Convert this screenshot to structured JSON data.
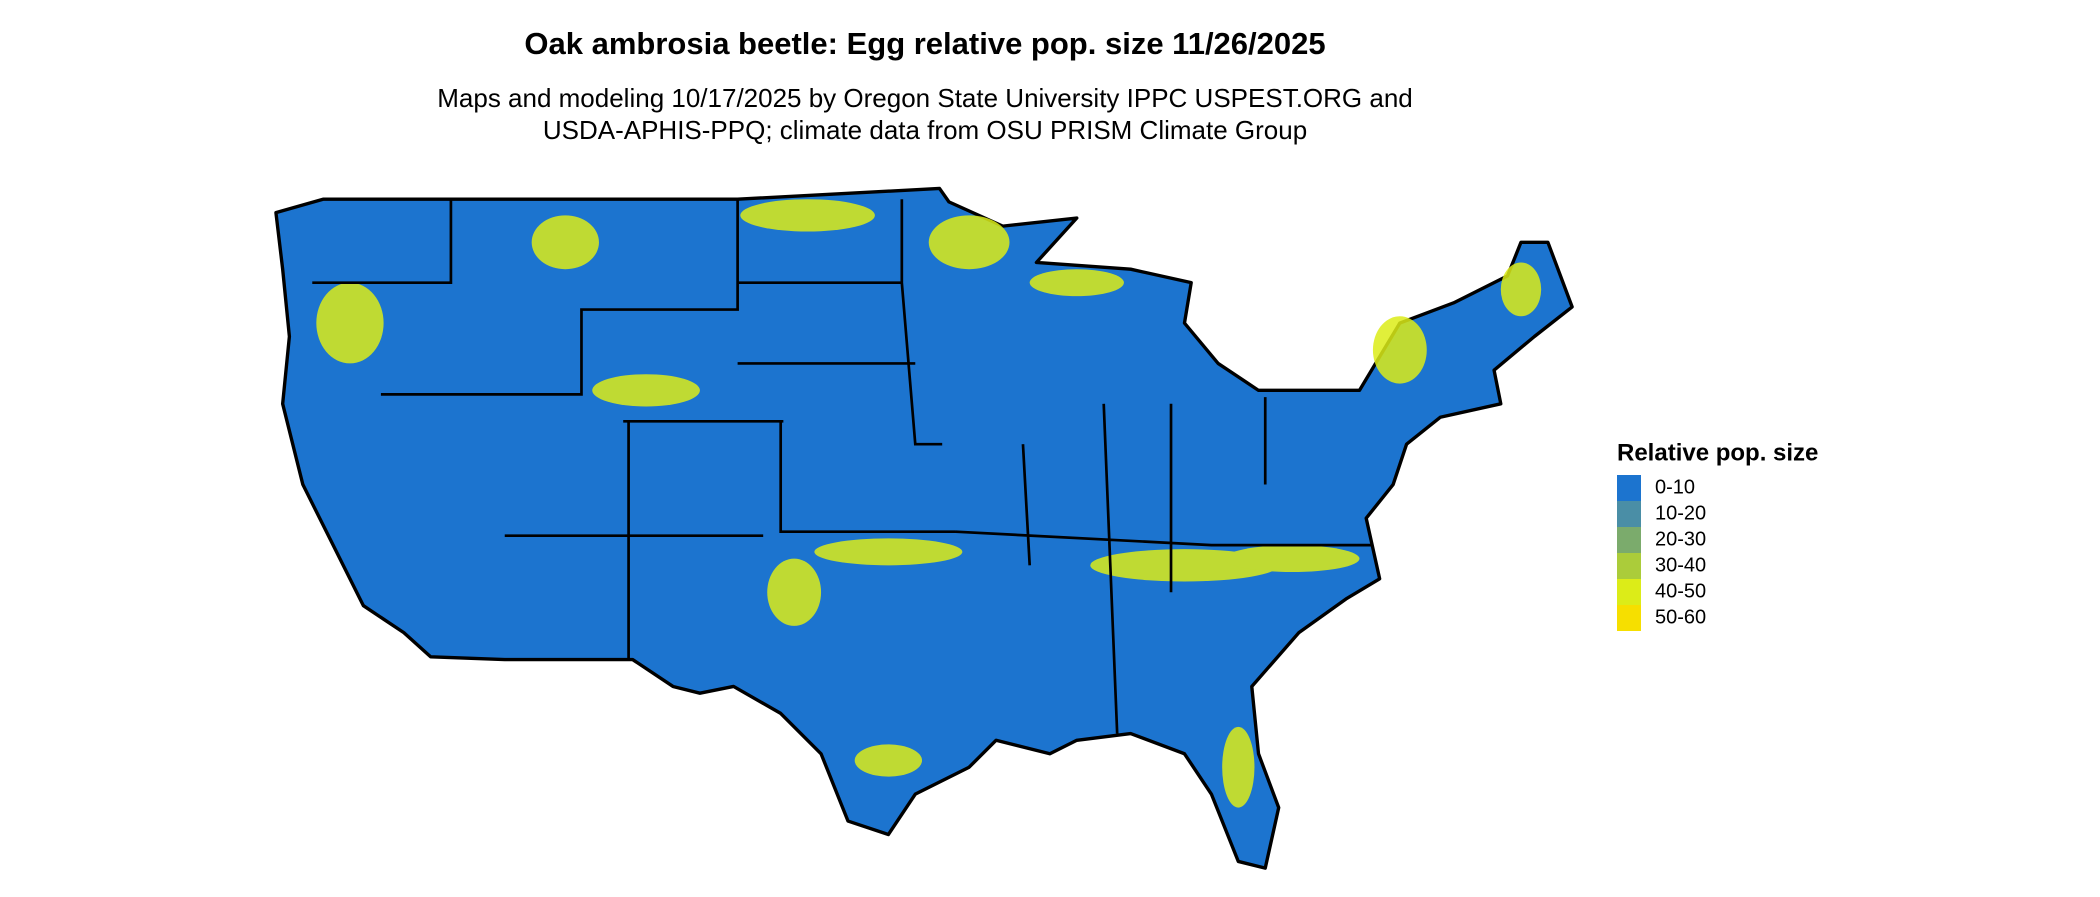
{
  "title": "Oak ambrosia beetle: Egg relative pop. size 11/26/2025",
  "subtitle": [
    "Maps and modeling 10/17/2025 by Oregon State University IPPC USPEST.ORG and",
    "USDA-APHIS-PPQ; climate data from OSU PRISM Climate Group"
  ],
  "legend": {
    "title": "Relative pop. size",
    "items": [
      {
        "label": "0-10",
        "color": "#1c74cf"
      },
      {
        "label": "10-20",
        "color": "#4a8ea6"
      },
      {
        "label": "20-30",
        "color": "#7bab6c"
      },
      {
        "label": "30-40",
        "color": "#abcc3a"
      },
      {
        "label": "40-50",
        "color": "#dcec18"
      },
      {
        "label": "50-60",
        "color": "#f6df00"
      }
    ]
  }
}
